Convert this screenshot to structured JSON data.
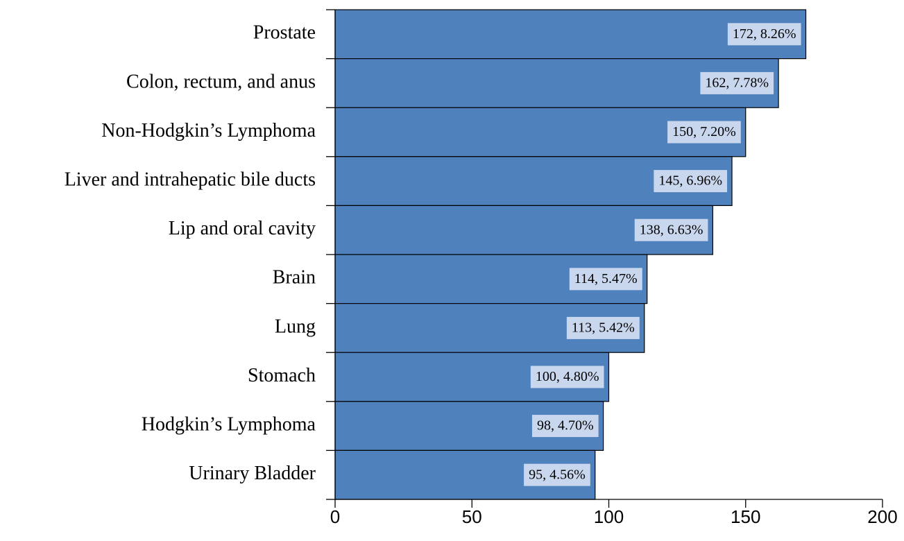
{
  "chart_data": {
    "type": "bar",
    "orientation": "horizontal",
    "categories": [
      "Prostate",
      "Colon, rectum, and anus",
      "Non-Hodgkin’s Lymphoma",
      "Liver and intrahepatic bile ducts",
      "Lip and oral cavity",
      "Brain",
      "Lung",
      "Stomach",
      "Hodgkin’s Lymphoma",
      "Urinary Bladder"
    ],
    "values": [
      172,
      162,
      150,
      145,
      138,
      114,
      113,
      100,
      98,
      95
    ],
    "value_labels": [
      "172, 8.26%",
      "162, 7.78%",
      "150, 7.20%",
      "145, 6.96%",
      "138, 6.63%",
      "114, 5.47%",
      "113, 5.42%",
      "100, 4.80%",
      "98, 4.70%",
      "95, 4.56%"
    ],
    "color": "#4f81bd",
    "xlim": [
      0,
      200
    ],
    "xticks": [
      0,
      50,
      100,
      150,
      200
    ],
    "grid": false
  }
}
